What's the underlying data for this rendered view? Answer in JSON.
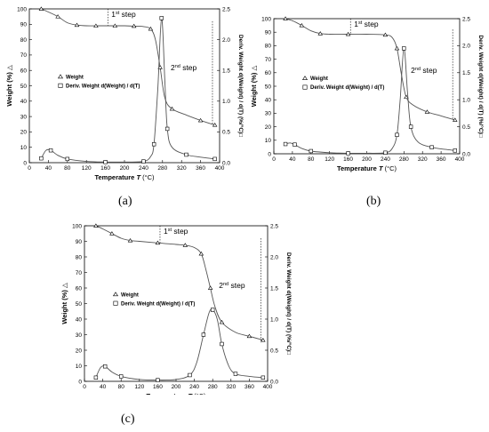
{
  "chart_data": [
    {
      "type": "line",
      "panel": "(a)",
      "xlabel": "Temperature",
      "xlabel_var": "T",
      "xlabel_unit": "(°C)",
      "ylabel_left": "Weight (%) △",
      "ylabel_right": "Deriv. Weight d(Weight) / d(T) (%/°C)□",
      "xlim": [
        0,
        400
      ],
      "ylim_left": [
        0,
        100
      ],
      "ylim_right": [
        0,
        2.5
      ],
      "xticks": [
        0,
        40,
        80,
        120,
        160,
        200,
        240,
        280,
        320,
        360,
        400
      ],
      "yticks_left": [
        0,
        10,
        20,
        30,
        40,
        50,
        60,
        70,
        80,
        90,
        100
      ],
      "yticks_right": [
        0,
        0.5,
        1.0,
        1.5,
        2.0,
        2.5
      ],
      "legend": [
        "Weight",
        "Deriv. Weight d(Weight) / d(T)"
      ],
      "annotations": [
        "1st step",
        "2nd step"
      ],
      "series": [
        {
          "name": "Weight",
          "axis": "left",
          "marker": "triangle",
          "x": [
            25,
            40,
            60,
            80,
            100,
            120,
            140,
            160,
            180,
            200,
            220,
            240,
            255,
            265,
            275,
            285,
            300,
            330,
            360,
            390
          ],
          "y": [
            100,
            98,
            95,
            91,
            89.5,
            89,
            89,
            89,
            89,
            89,
            88.8,
            88.5,
            87,
            80,
            62,
            42,
            35,
            31,
            27.5,
            24.5
          ]
        },
        {
          "name": "Deriv. Weight d(Weight) / d(T)",
          "axis": "right",
          "marker": "square",
          "x": [
            25,
            35,
            45,
            60,
            80,
            120,
            160,
            200,
            240,
            255,
            262,
            270,
            278,
            285,
            290,
            300,
            330,
            360,
            390
          ],
          "y": [
            0.07,
            0.2,
            0.2,
            0.12,
            0.06,
            0.02,
            0.01,
            0.01,
            0.02,
            0.1,
            0.3,
            1.2,
            2.35,
            1.3,
            0.55,
            0.25,
            0.13,
            0.09,
            0.06
          ]
        }
      ]
    },
    {
      "type": "line",
      "panel": "(b)",
      "xlabel": "Temperature",
      "xlabel_var": "T",
      "xlabel_unit": "(°C)",
      "ylabel_left": "Weight (%) △",
      "ylabel_right": "Deriv. Weight d(Weight) / d(T) (%/°C)□",
      "xlim": [
        0,
        400
      ],
      "ylim_left": [
        0,
        100
      ],
      "ylim_right": [
        0,
        2.5
      ],
      "xticks": [
        0,
        40,
        80,
        120,
        160,
        200,
        240,
        280,
        320,
        360,
        400
      ],
      "yticks_left": [
        0,
        10,
        20,
        30,
        40,
        50,
        60,
        70,
        80,
        90,
        100
      ],
      "yticks_right": [
        0,
        0.5,
        1.0,
        1.5,
        2.0,
        2.5
      ],
      "legend": [
        "Weight",
        "Deriv. Weight d(Weight) / d(T)"
      ],
      "annotations": [
        "1st step",
        "2nd step"
      ],
      "series": [
        {
          "name": "Weight",
          "axis": "left",
          "marker": "triangle",
          "x": [
            25,
            40,
            60,
            80,
            100,
            120,
            160,
            200,
            240,
            255,
            265,
            275,
            285,
            300,
            330,
            360,
            390
          ],
          "y": [
            100,
            98.5,
            95,
            91,
            89,
            88.5,
            88.5,
            88.5,
            88,
            86,
            78,
            58,
            42,
            36,
            31,
            28,
            25
          ]
        },
        {
          "name": "Deriv. Weight d(Weight) / d(T)",
          "axis": "right",
          "marker": "square",
          "x": [
            25,
            35,
            45,
            60,
            80,
            120,
            160,
            200,
            240,
            255,
            265,
            272,
            280,
            288,
            295,
            310,
            340,
            370,
            390
          ],
          "y": [
            0.18,
            0.2,
            0.17,
            0.1,
            0.05,
            0.02,
            0.01,
            0.01,
            0.02,
            0.1,
            0.35,
            1.0,
            1.95,
            1.1,
            0.5,
            0.22,
            0.12,
            0.08,
            0.06
          ]
        }
      ]
    },
    {
      "type": "line",
      "panel": "(c)",
      "xlabel": "Temperature",
      "xlabel_var": "T",
      "xlabel_unit": "(°C)",
      "ylabel_left": "Weight (%) △",
      "ylabel_right": "Deriv. Weight d(Weight) / d(T) (%/°C)□",
      "xlim": [
        0,
        400
      ],
      "ylim_left": [
        0,
        100
      ],
      "ylim_right": [
        0,
        2.5
      ],
      "xticks": [
        0,
        40,
        80,
        120,
        160,
        200,
        240,
        280,
        320,
        360,
        400
      ],
      "yticks_left": [
        0,
        10,
        20,
        30,
        40,
        50,
        60,
        70,
        80,
        90,
        100
      ],
      "yticks_right": [
        0,
        0.5,
        1.0,
        1.5,
        2.0,
        2.5
      ],
      "legend": [
        "Weight",
        "Deriv. Weight d(Weight) / d(T)"
      ],
      "annotations": [
        "1st step",
        "2nd step"
      ],
      "series": [
        {
          "name": "Weight",
          "axis": "left",
          "marker": "triangle",
          "x": [
            25,
            40,
            60,
            80,
            100,
            120,
            160,
            200,
            220,
            240,
            255,
            265,
            275,
            285,
            300,
            330,
            360,
            390
          ],
          "y": [
            100,
            98,
            95,
            92,
            90.5,
            90,
            89,
            88,
            87.5,
            86,
            82,
            72,
            60,
            48,
            38,
            31.5,
            29,
            26.5
          ]
        },
        {
          "name": "Deriv. Weight d(Weight) / d(T)",
          "axis": "right",
          "marker": "square",
          "x": [
            25,
            35,
            45,
            60,
            80,
            120,
            160,
            200,
            230,
            245,
            260,
            272,
            280,
            290,
            300,
            315,
            330,
            360,
            390
          ],
          "y": [
            0.06,
            0.22,
            0.24,
            0.15,
            0.08,
            0.03,
            0.02,
            0.03,
            0.1,
            0.3,
            0.75,
            1.1,
            1.15,
            1.0,
            0.6,
            0.25,
            0.12,
            0.08,
            0.06
          ]
        }
      ]
    }
  ],
  "captions": [
    "(a)",
    "(b)",
    "(c)"
  ]
}
